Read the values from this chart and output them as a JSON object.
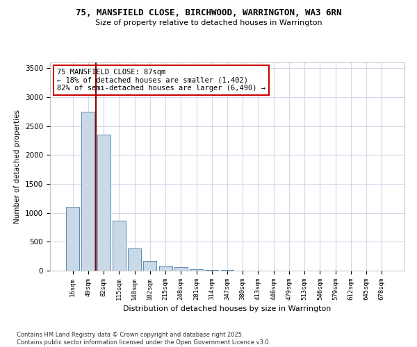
{
  "title1": "75, MANSFIELD CLOSE, BIRCHWOOD, WARRINGTON, WA3 6RN",
  "title2": "Size of property relative to detached houses in Warrington",
  "xlabel": "Distribution of detached houses by size in Warrington",
  "ylabel": "Number of detached properties",
  "categories": [
    "16sqm",
    "49sqm",
    "82sqm",
    "115sqm",
    "148sqm",
    "182sqm",
    "215sqm",
    "248sqm",
    "281sqm",
    "314sqm",
    "347sqm",
    "380sqm",
    "413sqm",
    "446sqm",
    "479sqm",
    "513sqm",
    "546sqm",
    "579sqm",
    "612sqm",
    "645sqm",
    "678sqm"
  ],
  "values": [
    1100,
    2750,
    2350,
    870,
    390,
    170,
    80,
    55,
    30,
    15,
    10,
    5,
    3,
    2,
    2,
    1,
    1,
    1,
    0,
    0,
    0
  ],
  "bar_color": "#c9d9e8",
  "bar_edge_color": "#5a8ab0",
  "vline_color": "#8b0000",
  "annotation_text": "75 MANSFIELD CLOSE: 87sqm\n← 18% of detached houses are smaller (1,402)\n82% of semi-detached houses are larger (6,490) →",
  "annotation_box_color": "white",
  "annotation_box_edge": "#cc0000",
  "ylim": [
    0,
    3600
  ],
  "yticks": [
    0,
    500,
    1000,
    1500,
    2000,
    2500,
    3000,
    3500
  ],
  "footer1": "Contains HM Land Registry data © Crown copyright and database right 2025.",
  "footer2": "Contains public sector information licensed under the Open Government Licence v3.0.",
  "bg_color": "white",
  "grid_color": "#d0d8e8"
}
